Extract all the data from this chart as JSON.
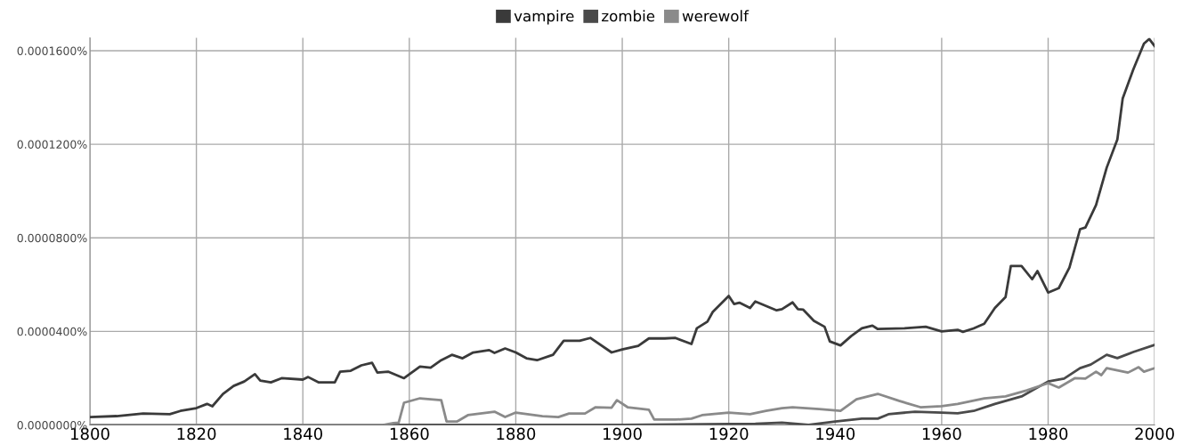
{
  "chart_data": {
    "type": "line",
    "xlim": [
      1800,
      2000
    ],
    "xticks": [
      1800,
      1820,
      1840,
      1860,
      1880,
      1900,
      1920,
      1940,
      1960,
      1980,
      2000
    ],
    "ylim": [
      0,
      0.0001655
    ],
    "yticks": [
      {
        "value": 0,
        "label": "0.0000000%"
      },
      {
        "value": 4e-05,
        "label": "0.0000400%"
      },
      {
        "value": 8e-05,
        "label": "0.0000800%"
      },
      {
        "value": 0.00012,
        "label": "0.0001200%"
      },
      {
        "value": 0.00016,
        "label": "0.0001600%"
      }
    ],
    "grid": true,
    "legend": "top",
    "line_style": "solid",
    "marker": "none",
    "series": [
      {
        "name": "vampire",
        "color": "#3a3a3a",
        "x": [
          1800,
          1805,
          1810,
          1815,
          1817,
          1820,
          1822,
          1823,
          1825,
          1827,
          1829,
          1831,
          1832,
          1834,
          1836,
          1840,
          1841,
          1843,
          1846,
          1847,
          1849,
          1851,
          1853,
          1854,
          1856,
          1859,
          1862,
          1864,
          1866,
          1868,
          1870,
          1872,
          1875,
          1876,
          1878,
          1880,
          1882,
          1884,
          1887,
          1889,
          1892,
          1894,
          1898,
          1900,
          1903,
          1905,
          1908,
          1910,
          1913,
          1914,
          1916,
          1917,
          1920,
          1921,
          1922,
          1924,
          1925,
          1929,
          1930,
          1932,
          1933,
          1934,
          1936,
          1938,
          1939,
          1941,
          1943,
          1945,
          1947,
          1948,
          1953,
          1957,
          1960,
          1963,
          1964,
          1966,
          1968,
          1970,
          1972,
          1973,
          1975,
          1977,
          1978,
          1980,
          1982,
          1984,
          1986,
          1987,
          1989,
          1991,
          1993,
          1994,
          1996,
          1998,
          1999,
          2000
        ],
        "values": [
          3.4e-06,
          3.8e-06,
          4.9e-06,
          4.6e-06,
          6e-06,
          7.2e-06,
          9e-06,
          8e-06,
          1.33e-05,
          1.67e-05,
          1.86e-05,
          2.17e-05,
          1.9e-05,
          1.82e-05,
          2e-05,
          1.94e-05,
          2.05e-05,
          1.82e-05,
          1.82e-05,
          2.28e-05,
          2.32e-05,
          2.55e-05,
          2.66e-05,
          2.24e-05,
          2.28e-05,
          2e-05,
          2.5e-05,
          2.45e-05,
          2.77e-05,
          3e-05,
          2.85e-05,
          3.1e-05,
          3.2e-05,
          3.08e-05,
          3.27e-05,
          3.1e-05,
          2.85e-05,
          2.77e-05,
          3e-05,
          3.6e-05,
          3.6e-05,
          3.72e-05,
          3.1e-05,
          3.23e-05,
          3.38e-05,
          3.7e-05,
          3.7e-05,
          3.72e-05,
          3.46e-05,
          4.13e-05,
          4.42e-05,
          4.83e-05,
          5.52e-05,
          5.17e-05,
          5.23e-05,
          5e-05,
          5.28e-05,
          4.9e-05,
          4.95e-05,
          5.24e-05,
          4.95e-05,
          4.93e-05,
          4.45e-05,
          4.2e-05,
          3.57e-05,
          3.4e-05,
          3.8e-05,
          4.13e-05,
          4.25e-05,
          4.1e-05,
          4.13e-05,
          4.2e-05,
          4e-05,
          4.07e-05,
          3.98e-05,
          4.13e-05,
          4.33e-05,
          5e-05,
          5.47e-05,
          6.8e-05,
          6.8e-05,
          6.23e-05,
          6.58e-05,
          5.66e-05,
          5.85e-05,
          6.73e-05,
          8.37e-05,
          8.44e-05,
          9.4e-05,
          0.00011,
          0.000122,
          0.0001395,
          0.000152,
          0.000163,
          0.000165,
          0.000162
        ]
      },
      {
        "name": "zombie",
        "color": "#4a4a4a",
        "x": [
          1800,
          1850,
          1900,
          1925,
          1930,
          1935,
          1940,
          1945,
          1948,
          1950,
          1955,
          1960,
          1963,
          1966,
          1970,
          1975,
          1980,
          1983,
          1986,
          1988,
          1991,
          1993,
          1996,
          2000
        ],
        "values": [
          0,
          0,
          0,
          5e-07,
          1e-06,
          0,
          1.5e-06,
          2.7e-06,
          2.7e-06,
          4.6e-06,
          5.7e-06,
          5.3e-06,
          5e-06,
          6e-06,
          9e-06,
          1.22e-05,
          1.86e-05,
          1.98e-05,
          2.43e-05,
          2.58e-05,
          3e-05,
          2.86e-05,
          3.12e-05,
          3.42e-05
        ]
      },
      {
        "name": "werewolf",
        "color": "#8a8a8a",
        "x": [
          1800,
          1855,
          1857,
          1858,
          1859,
          1862,
          1866,
          1867,
          1869,
          1871,
          1876,
          1878,
          1880,
          1885,
          1888,
          1890,
          1893,
          1895,
          1898,
          1899,
          1901,
          1905,
          1906,
          1910,
          1913,
          1915,
          1920,
          1924,
          1927,
          1930,
          1932,
          1937,
          1941,
          1944,
          1948,
          1952,
          1956,
          1960,
          1963,
          1968,
          1972,
          1976,
          1980,
          1982,
          1985,
          1987,
          1989,
          1990,
          1991,
          1995,
          1997,
          1998,
          2000
        ],
        "values": [
          0,
          0,
          8e-07,
          1e-06,
          9.5e-06,
          1.14e-05,
          1.06e-05,
          1.5e-06,
          1.5e-06,
          4.2e-06,
          5.7e-06,
          3.4e-06,
          5.3e-06,
          3.8e-06,
          3.4e-06,
          4.9e-06,
          4.9e-06,
          7.6e-06,
          7.4e-06,
          1.06e-05,
          7.6e-06,
          6.5e-06,
          2.3e-06,
          2.3e-06,
          2.7e-06,
          4.2e-06,
          5.3e-06,
          4.6e-06,
          6e-06,
          7.2e-06,
          7.6e-06,
          6.8e-06,
          6e-06,
          1.1e-05,
          1.33e-05,
          1.03e-05,
          7.6e-06,
          8e-06,
          9e-06,
          1.14e-05,
          1.22e-05,
          1.48e-05,
          1.79e-05,
          1.6e-05,
          2e-05,
          1.98e-05,
          2.28e-05,
          2.13e-05,
          2.43e-05,
          2.24e-05,
          2.47e-05,
          2.28e-05,
          2.43e-05
        ]
      }
    ]
  }
}
